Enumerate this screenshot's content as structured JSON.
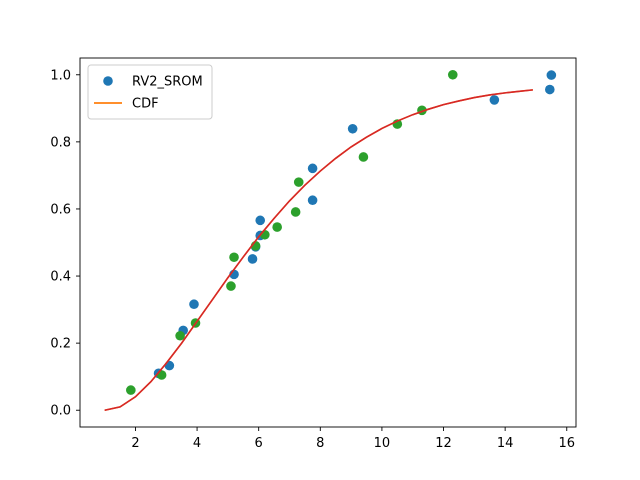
{
  "chart_data": {
    "type": "scatter",
    "title": "",
    "xlabel": "",
    "ylabel": "",
    "xlim": [
      0.2,
      16.3
    ],
    "ylim": [
      -0.05,
      1.05
    ],
    "x_ticks": [
      2,
      4,
      6,
      8,
      10,
      12,
      14,
      16
    ],
    "y_ticks": [
      0.0,
      0.2,
      0.4,
      0.6,
      0.8,
      1.0
    ],
    "x_tick_labels": [
      "2",
      "4",
      "6",
      "8",
      "10",
      "12",
      "14",
      "16"
    ],
    "y_tick_labels": [
      "0.0",
      "0.2",
      "0.4",
      "0.6",
      "0.8",
      "1.0"
    ],
    "grid": false,
    "legend_position": "upper-left",
    "series": [
      {
        "name": "RV2_SROM",
        "kind": "scatter",
        "color": "#1f77b4",
        "x": [
          2.75,
          3.1,
          3.55,
          3.9,
          5.2,
          5.8,
          5.9,
          6.05,
          6.05,
          7.75,
          7.75,
          9.05,
          13.65,
          15.45,
          15.5
        ],
        "y": [
          0.11,
          0.133,
          0.238,
          0.316,
          0.405,
          0.451,
          0.487,
          0.521,
          0.566,
          0.626,
          0.721,
          0.839,
          0.925,
          0.956,
          0.999
        ]
      },
      {
        "name": "",
        "kind": "scatter",
        "color": "#2ca02c",
        "x": [
          1.85,
          2.85,
          3.45,
          3.95,
          5.1,
          5.2,
          5.9,
          6.2,
          6.6,
          7.2,
          7.3,
          9.4,
          10.5,
          11.3,
          12.3
        ],
        "y": [
          0.06,
          0.105,
          0.222,
          0.26,
          0.37,
          0.456,
          0.49,
          0.523,
          0.546,
          0.591,
          0.68,
          0.755,
          0.853,
          0.894,
          1.0
        ]
      },
      {
        "name": "CDF",
        "kind": "line",
        "color": "#ff7f0e",
        "x": [
          1.0,
          1.5,
          2.0,
          2.5,
          3.0,
          3.5,
          4.0,
          4.5,
          5.0,
          5.5,
          6.0,
          6.5,
          7.0,
          7.5,
          8.0,
          8.5,
          9.0,
          9.5,
          10.0,
          10.5,
          11.0,
          11.5,
          12.0,
          12.5,
          13.0,
          13.5,
          14.0,
          14.5,
          14.9
        ],
        "y": [
          0.0,
          0.01,
          0.04,
          0.085,
          0.14,
          0.2,
          0.265,
          0.33,
          0.395,
          0.457,
          0.517,
          0.572,
          0.624,
          0.671,
          0.713,
          0.751,
          0.785,
          0.814,
          0.84,
          0.862,
          0.881,
          0.897,
          0.911,
          0.922,
          0.932,
          0.94,
          0.946,
          0.951,
          0.955
        ]
      },
      {
        "name": "",
        "kind": "line",
        "color": "#d62728",
        "x": [
          1.0,
          1.5,
          2.0,
          2.5,
          3.0,
          3.5,
          4.0,
          4.5,
          5.0,
          5.5,
          6.0,
          6.5,
          7.0,
          7.5,
          8.0,
          8.5,
          9.0,
          9.5,
          10.0,
          10.5,
          11.0,
          11.5,
          12.0,
          12.5,
          13.0,
          13.5,
          14.0,
          14.5,
          14.9
        ],
        "y": [
          0.0,
          0.01,
          0.04,
          0.085,
          0.14,
          0.2,
          0.265,
          0.33,
          0.395,
          0.457,
          0.517,
          0.572,
          0.624,
          0.671,
          0.713,
          0.751,
          0.785,
          0.814,
          0.84,
          0.862,
          0.881,
          0.897,
          0.911,
          0.922,
          0.932,
          0.94,
          0.946,
          0.951,
          0.955
        ]
      }
    ]
  }
}
